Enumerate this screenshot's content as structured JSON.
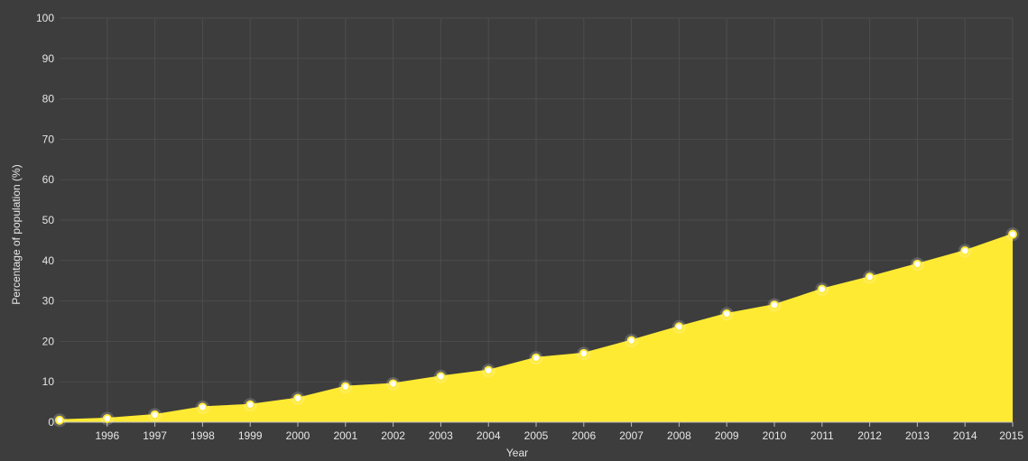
{
  "chart_data": {
    "type": "area",
    "xlabel": "Year",
    "ylabel": "Percentage of population (%)",
    "ylim": [
      0,
      100
    ],
    "yticks": [
      0,
      10,
      20,
      30,
      40,
      50,
      60,
      70,
      80,
      90,
      100
    ],
    "xlim": [
      1995,
      2015
    ],
    "x_tick_labels": [
      "1996",
      "1997",
      "1998",
      "1999",
      "2000",
      "2001",
      "2002",
      "2003",
      "2004",
      "2005",
      "2006",
      "2007",
      "2008",
      "2009",
      "2010",
      "2011",
      "2012",
      "2013",
      "2014",
      "2015"
    ],
    "grid": true,
    "legend": "none",
    "x": [
      1995,
      1996,
      1997,
      1998,
      1999,
      2000,
      2001,
      2002,
      2003,
      2004,
      2005,
      2006,
      2007,
      2008,
      2009,
      2010,
      2011,
      2012,
      2013,
      2014,
      2015
    ],
    "values": [
      0.5,
      0.9,
      1.8,
      3.7,
      4.3,
      5.9,
      8.8,
      9.5,
      11.3,
      12.8,
      15.9,
      17.0,
      20.2,
      23.6,
      26.8,
      29.0,
      32.9,
      35.9,
      39.1,
      42.4,
      46.5
    ],
    "colors": {
      "background": "#3d3d3d",
      "area": "#ffea33",
      "line": "#ffea33",
      "marker_fill": "#ffffff",
      "marker_ring": "#ffea33",
      "grid": "#4d4d4d",
      "axis": "#bdbdbd",
      "text": "#e6e6e6"
    }
  }
}
